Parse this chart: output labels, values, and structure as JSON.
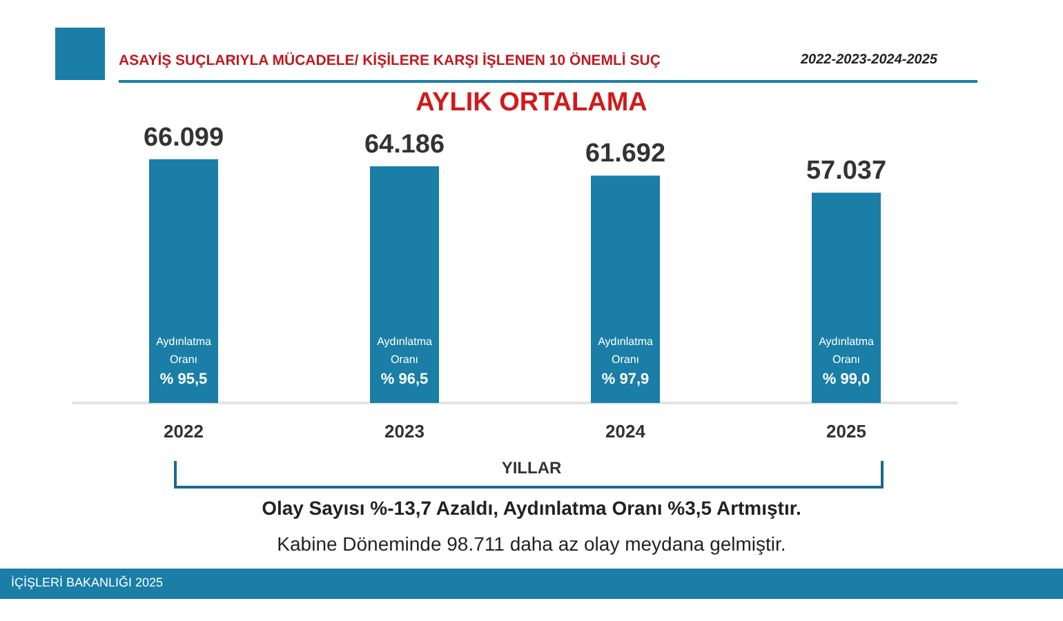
{
  "chart_data": {
    "type": "bar",
    "title": "AYLIK ORTALAMA",
    "subtitle": "2022-2023-2024-2025",
    "xlabel": "YILLAR",
    "categories": [
      "2022",
      "2023",
      "2024",
      "2025"
    ],
    "values": [
      66.099,
      64.186,
      61.692,
      57.037
    ],
    "color": "#1a7ea6",
    "tick_labels": "x",
    "grid": false,
    "data_labels": true,
    "annotations": [
      "ASAYİŞ SUÇLARIYLA MÜCADELE/ KİŞİLERE KARŞI İŞLENEN 10 ÖNEMLİ SUÇ",
      "Aydınlatma\nOranı\n% 95,5",
      "Aydınlatma\nOranı\n% 96,5",
      "Aydınlatma\nOranı\n% 97,9",
      "Aydınlatma\nOranı\n% 99,0",
      "Olay Sayısı %-13,7 Azaldı, Aydınlatma Oranı %3,5 Artmıştır.",
      "Kabine Döneminde 98.711 daha az olay meydana gelmiştir.",
      "İÇİŞLERİ BAKANLIĞI 2025"
    ]
  }
}
